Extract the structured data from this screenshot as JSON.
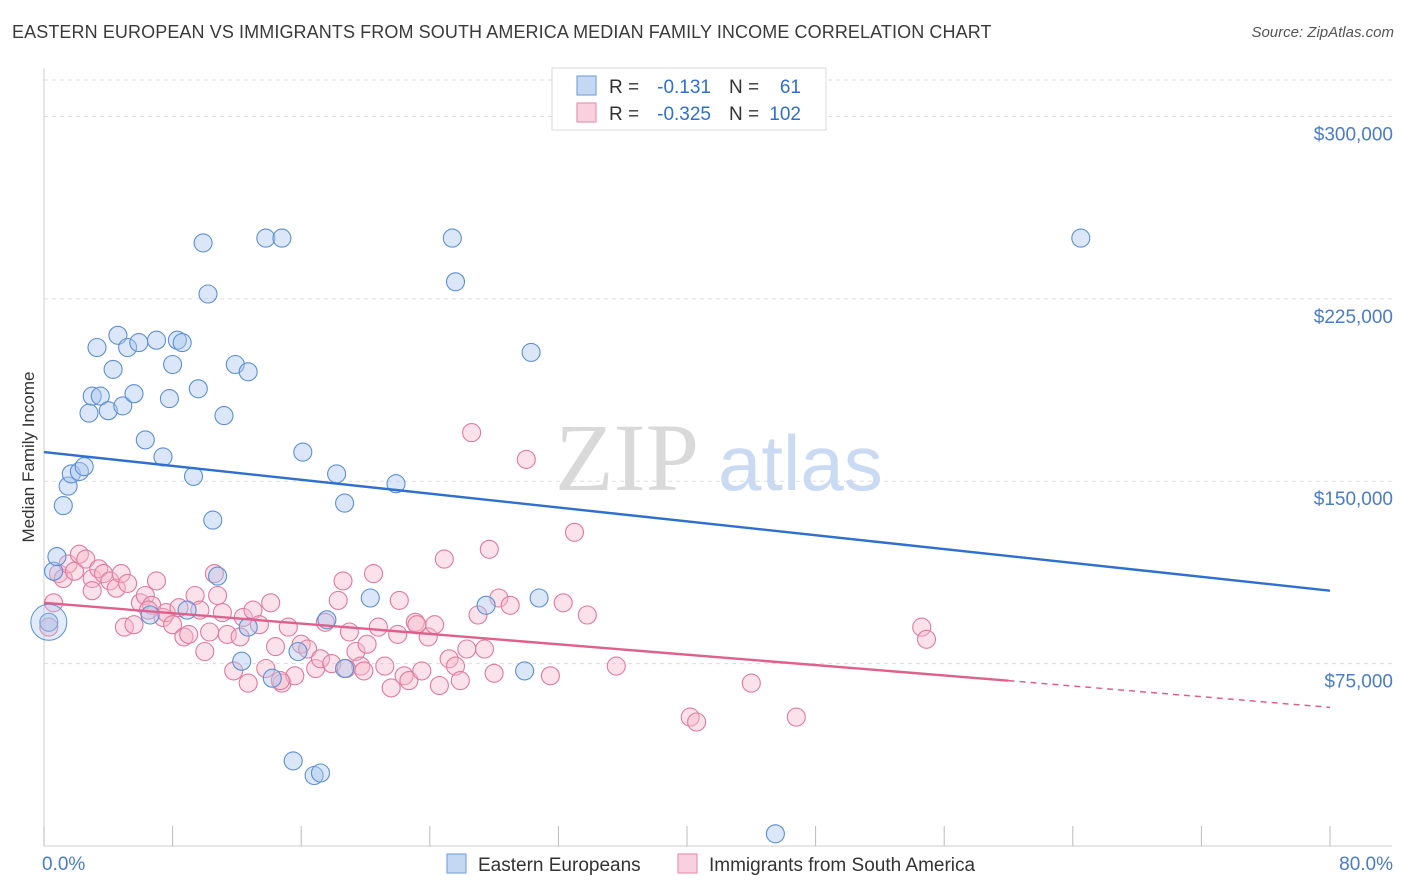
{
  "title": "EASTERN EUROPEAN VS IMMIGRANTS FROM SOUTH AMERICA MEDIAN FAMILY INCOME CORRELATION CHART",
  "source": "Source: ZipAtlas.com",
  "watermark": {
    "zip": "ZIP",
    "atlas": "atlas"
  },
  "colors": {
    "blue_fill": "#a9c6ef",
    "blue_stroke": "#5b8fd4",
    "blue_line": "#2f6fce",
    "pink_fill": "#f6b8cb",
    "pink_stroke": "#e07a9c",
    "pink_line": "#e0608d",
    "tick_text": "#4a7cc9",
    "grid": "#dddddd"
  },
  "legend": {
    "rows": [
      {
        "r_label": "R =",
        "r_value": "-0.131",
        "n_label": "N =",
        "n_value": "61"
      },
      {
        "r_label": "R =",
        "r_value": "-0.325",
        "n_label": "N =",
        "n_value": "102"
      }
    ]
  },
  "chart_data": {
    "type": "scatter",
    "xlabel": "",
    "ylabel": "Median Family Income",
    "xlim": [
      0,
      80
    ],
    "ylim": [
      0,
      315000
    ],
    "x_tick_labels": [
      "0.0%",
      "80.0%"
    ],
    "y_ticks": [
      {
        "value": 75000,
        "label": "$75,000"
      },
      {
        "value": 150000,
        "label": "$150,000"
      },
      {
        "value": 225000,
        "label": "$225,000"
      },
      {
        "value": 300000,
        "label": "$300,000"
      }
    ],
    "grid": "horizontal dashed",
    "legend_position": "top-center",
    "series": [
      {
        "name": "Eastern Europeans",
        "trend": {
          "x": [
            0,
            80
          ],
          "y": [
            162000,
            105000
          ]
        },
        "points": [
          [
            0.6,
            113000
          ],
          [
            0.8,
            119000
          ],
          [
            1.2,
            140000
          ],
          [
            1.5,
            148000
          ],
          [
            1.7,
            153000
          ],
          [
            2.2,
            154000
          ],
          [
            2.5,
            156000
          ],
          [
            2.8,
            178000
          ],
          [
            3.0,
            185000
          ],
          [
            3.3,
            205000
          ],
          [
            3.5,
            185000
          ],
          [
            4.0,
            179000
          ],
          [
            4.3,
            196000
          ],
          [
            4.6,
            210000
          ],
          [
            4.9,
            181000
          ],
          [
            5.2,
            205000
          ],
          [
            5.6,
            186000
          ],
          [
            5.9,
            207000
          ],
          [
            6.3,
            167000
          ],
          [
            6.6,
            95000
          ],
          [
            7.0,
            208000
          ],
          [
            7.4,
            160000
          ],
          [
            7.8,
            184000
          ],
          [
            8.0,
            198000
          ],
          [
            8.3,
            208000
          ],
          [
            8.6,
            207000
          ],
          [
            8.9,
            97000
          ],
          [
            9.3,
            152000
          ],
          [
            9.6,
            188000
          ],
          [
            9.9,
            248000
          ],
          [
            10.2,
            227000
          ],
          [
            10.5,
            134000
          ],
          [
            10.8,
            111000
          ],
          [
            11.2,
            177000
          ],
          [
            11.9,
            198000
          ],
          [
            12.3,
            76000
          ],
          [
            12.7,
            195000
          ],
          [
            12.7,
            90000
          ],
          [
            13.8,
            250000
          ],
          [
            14.2,
            69000
          ],
          [
            14.8,
            250000
          ],
          [
            15.5,
            35000
          ],
          [
            15.8,
            80000
          ],
          [
            16.1,
            162000
          ],
          [
            16.8,
            29000
          ],
          [
            17.2,
            30000
          ],
          [
            17.6,
            93000
          ],
          [
            18.2,
            153000
          ],
          [
            18.7,
            73000
          ],
          [
            18.7,
            141000
          ],
          [
            20.3,
            102000
          ],
          [
            21.9,
            149000
          ],
          [
            25.4,
            250000
          ],
          [
            25.6,
            232000
          ],
          [
            27.5,
            99000
          ],
          [
            29.9,
            72000
          ],
          [
            30.3,
            203000
          ],
          [
            30.8,
            102000
          ],
          [
            45.5,
            5000
          ],
          [
            64.5,
            250000
          ],
          [
            0.3,
            92000
          ]
        ]
      },
      {
        "name": "Immigrants from South America",
        "trend": {
          "x": [
            0,
            60
          ],
          "y": [
            100000,
            68000
          ]
        },
        "trend_dashed": {
          "x": [
            60,
            80
          ],
          "y": [
            68000,
            57000
          ]
        },
        "points": [
          [
            0.3,
            90000
          ],
          [
            0.6,
            100000
          ],
          [
            0.9,
            112000
          ],
          [
            1.2,
            110000
          ],
          [
            1.5,
            116000
          ],
          [
            1.9,
            113000
          ],
          [
            2.2,
            120000
          ],
          [
            2.6,
            118000
          ],
          [
            3.0,
            110000
          ],
          [
            3.0,
            105000
          ],
          [
            3.4,
            114000
          ],
          [
            3.7,
            112000
          ],
          [
            4.1,
            109000
          ],
          [
            4.5,
            106000
          ],
          [
            4.8,
            112000
          ],
          [
            5.0,
            90000
          ],
          [
            5.2,
            108000
          ],
          [
            5.6,
            91000
          ],
          [
            6.0,
            100000
          ],
          [
            6.3,
            103000
          ],
          [
            6.7,
            99000
          ],
          [
            7.0,
            109000
          ],
          [
            7.4,
            94000
          ],
          [
            7.6,
            96000
          ],
          [
            8.0,
            91000
          ],
          [
            8.4,
            98000
          ],
          [
            8.7,
            86000
          ],
          [
            9.0,
            87000
          ],
          [
            9.4,
            103000
          ],
          [
            9.7,
            97000
          ],
          [
            10.0,
            80000
          ],
          [
            10.3,
            88000
          ],
          [
            10.6,
            112000
          ],
          [
            10.8,
            103000
          ],
          [
            11.1,
            96000
          ],
          [
            11.4,
            87000
          ],
          [
            11.8,
            72000
          ],
          [
            12.2,
            86000
          ],
          [
            12.4,
            94000
          ],
          [
            12.7,
            67000
          ],
          [
            13.0,
            97000
          ],
          [
            13.4,
            91000
          ],
          [
            13.8,
            73000
          ],
          [
            14.1,
            100000
          ],
          [
            14.4,
            82000
          ],
          [
            14.8,
            67000
          ],
          [
            15.2,
            90000
          ],
          [
            15.6,
            70000
          ],
          [
            16.0,
            83000
          ],
          [
            16.4,
            81000
          ],
          [
            16.9,
            73000
          ],
          [
            17.2,
            77000
          ],
          [
            17.5,
            92000
          ],
          [
            17.9,
            75000
          ],
          [
            18.3,
            101000
          ],
          [
            18.6,
            109000
          ],
          [
            19.0,
            88000
          ],
          [
            19.4,
            80000
          ],
          [
            19.7,
            74000
          ],
          [
            20.1,
            83000
          ],
          [
            20.5,
            112000
          ],
          [
            20.8,
            90000
          ],
          [
            21.2,
            74000
          ],
          [
            21.6,
            65000
          ],
          [
            22.0,
            87000
          ],
          [
            22.4,
            70000
          ],
          [
            22.7,
            68000
          ],
          [
            23.1,
            92000
          ],
          [
            23.5,
            72000
          ],
          [
            23.9,
            86000
          ],
          [
            24.3,
            91000
          ],
          [
            24.6,
            66000
          ],
          [
            24.9,
            118000
          ],
          [
            25.2,
            77000
          ],
          [
            25.6,
            74000
          ],
          [
            25.9,
            68000
          ],
          [
            26.3,
            81000
          ],
          [
            26.6,
            170000
          ],
          [
            27.0,
            95000
          ],
          [
            27.4,
            81000
          ],
          [
            27.7,
            122000
          ],
          [
            28.0,
            71000
          ],
          [
            28.3,
            102000
          ],
          [
            29.0,
            99000
          ],
          [
            30.0,
            159000
          ],
          [
            31.5,
            70000
          ],
          [
            32.3,
            100000
          ],
          [
            33.0,
            129000
          ],
          [
            33.8,
            95000
          ],
          [
            35.6,
            74000
          ],
          [
            40.2,
            53000
          ],
          [
            40.6,
            51000
          ],
          [
            44.0,
            67000
          ],
          [
            46.8,
            53000
          ],
          [
            54.6,
            90000
          ],
          [
            54.9,
            85000
          ],
          [
            6.5,
            97000
          ],
          [
            14.7,
            68000
          ],
          [
            19.9,
            72000
          ],
          [
            22.1,
            101000
          ],
          [
            23.2,
            91000
          ],
          [
            18.8,
            73000
          ]
        ]
      }
    ]
  }
}
